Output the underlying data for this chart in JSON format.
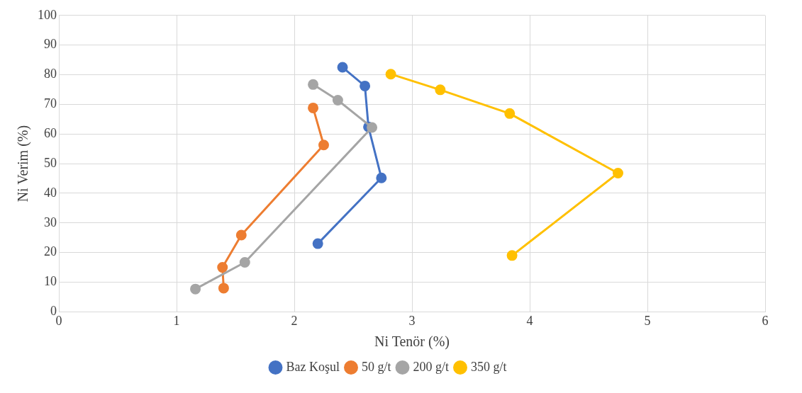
{
  "chart_data": {
    "type": "line",
    "xlabel": "Ni Tenör (%)",
    "ylabel": "Ni Verim (%)",
    "xlim": [
      0,
      6
    ],
    "xticks": [
      0,
      1,
      2,
      3,
      4,
      5,
      6
    ],
    "ylim": [
      0,
      100
    ],
    "yticks": [
      0,
      10,
      20,
      30,
      40,
      50,
      60,
      70,
      80,
      90,
      100
    ],
    "grid": true,
    "legend": "bottom",
    "marker": "circle",
    "line_style": "solid",
    "series": [
      {
        "name": "Baz Koşul",
        "color": "#4472c4",
        "x": [
          2.41,
          2.6,
          2.63,
          2.74,
          2.2
        ],
        "values": [
          82.5,
          76.2,
          62.4,
          45.2,
          23
        ]
      },
      {
        "name": "50 g/t",
        "color": "#ed7d31",
        "x": [
          2.16,
          2.25,
          1.55,
          1.39,
          1.4
        ],
        "values": [
          68.8,
          56.3,
          25.9,
          15,
          8
        ]
      },
      {
        "name": "200 g/t",
        "color": "#a5a5a5",
        "x": [
          2.16,
          2.37,
          2.66,
          1.58,
          1.16
        ],
        "values": [
          76.7,
          71.4,
          62.2,
          16.7,
          7.7
        ]
      },
      {
        "name": "350 g/t",
        "color": "#ffc000",
        "x": [
          2.82,
          3.24,
          3.83,
          4.75,
          3.85
        ],
        "values": [
          80.2,
          74.9,
          66.9,
          46.8,
          19
        ]
      }
    ]
  }
}
